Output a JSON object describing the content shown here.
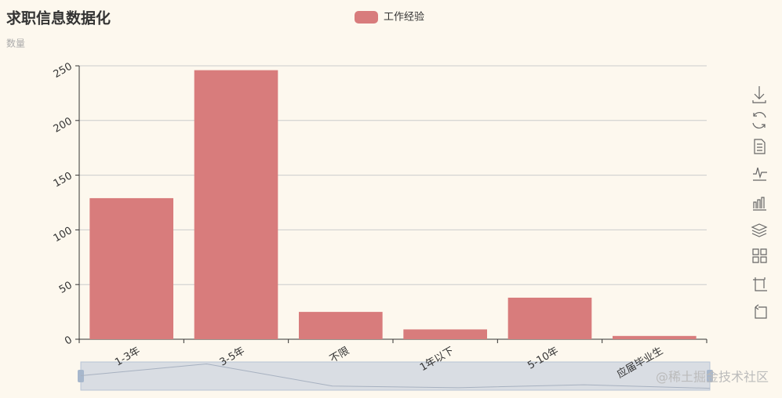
{
  "chart_data": {
    "type": "bar",
    "title": "求职信息数据化",
    "subtitle": "数量",
    "categories": [
      "1-3年",
      "3-5年",
      "不限",
      "1年以下",
      "5-10年",
      "应届毕业生"
    ],
    "series": [
      {
        "name": "工作经验",
        "color": "#d87c7c",
        "values": [
          129,
          246,
          25,
          9,
          38,
          3
        ]
      }
    ],
    "ylim": [
      0,
      250
    ],
    "yticks": [
      0,
      50,
      100,
      150,
      200,
      250
    ],
    "grid": true,
    "legend": "top",
    "watermark": "@稀土掘金技术社区"
  }
}
